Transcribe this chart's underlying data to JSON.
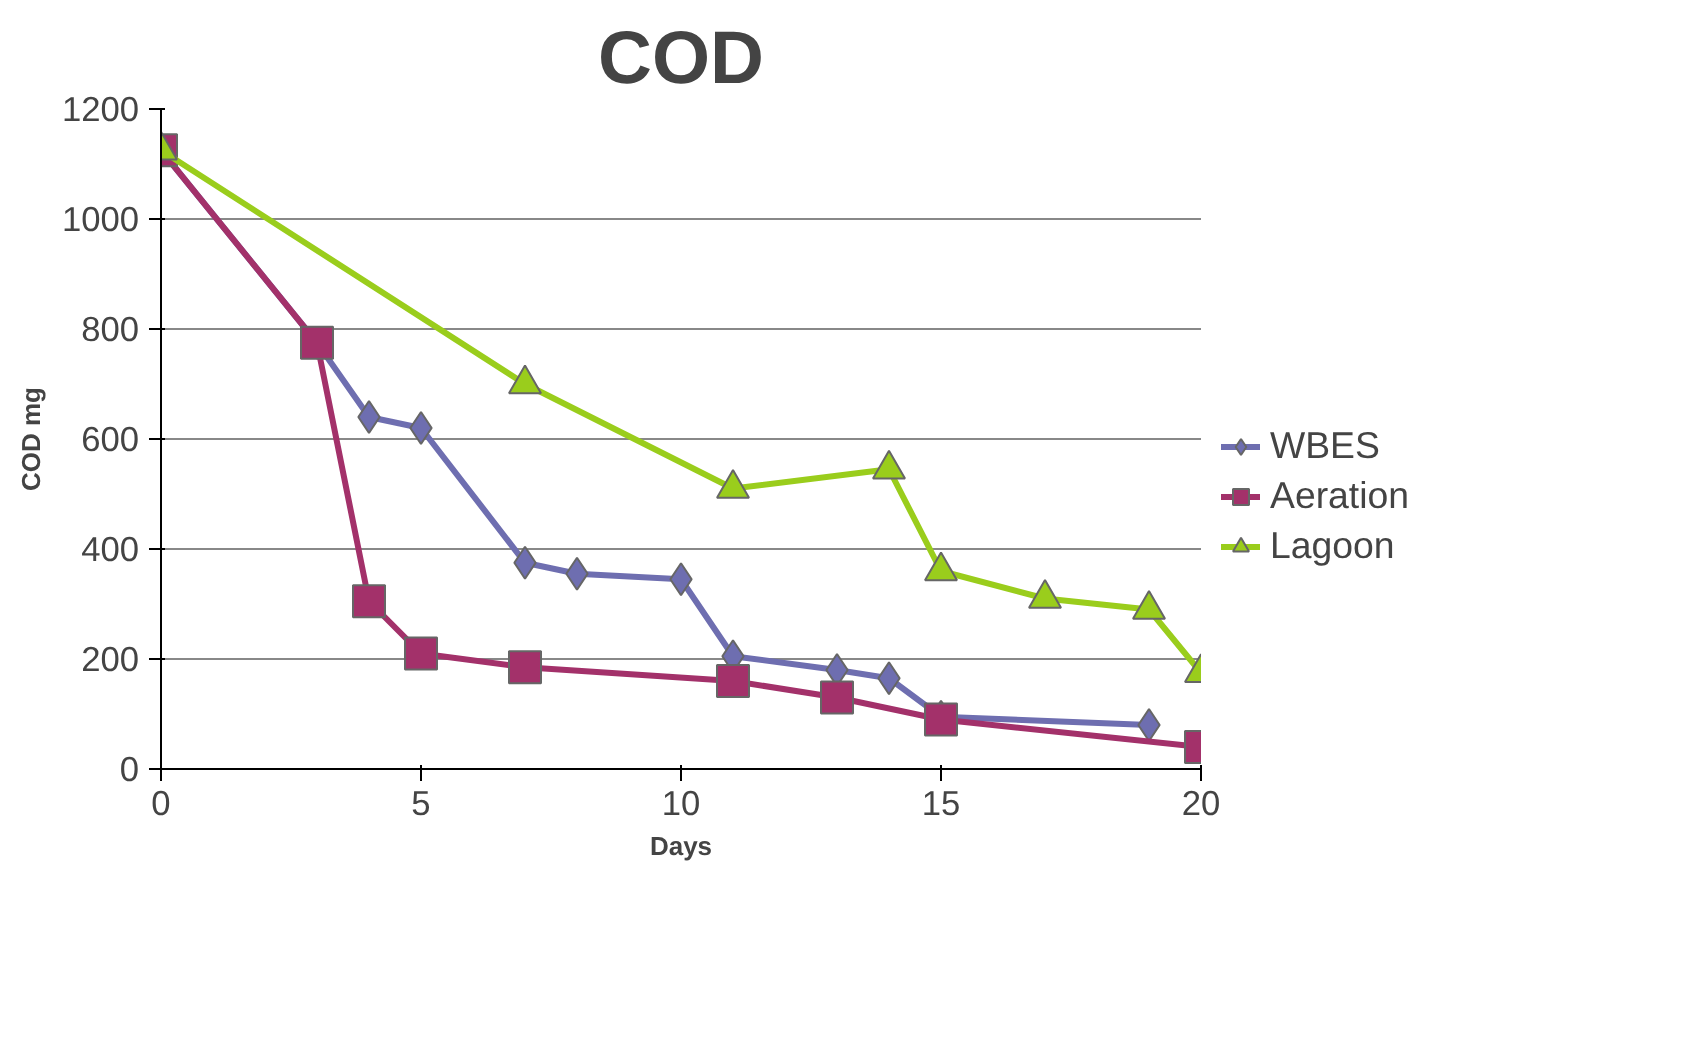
{
  "chart_data": {
    "type": "line",
    "title": "COD",
    "xlabel": "Days",
    "ylabel": "COD mg",
    "xlim": [
      0,
      20
    ],
    "xticks": [
      0,
      5,
      10,
      15,
      20
    ],
    "ylim": [
      0,
      1200
    ],
    "yticks": [
      0,
      200,
      400,
      600,
      800,
      1000,
      1200
    ],
    "grid": "y",
    "legend": "right",
    "series": [
      {
        "name": "WBES",
        "color": "#6e6eb0",
        "marker": "diamond",
        "x": [
          0,
          3,
          4,
          5,
          7,
          8,
          10,
          11,
          13,
          14,
          15,
          19
        ],
        "values": [
          1125,
          775,
          640,
          620,
          375,
          355,
          345,
          205,
          180,
          165,
          95,
          80
        ]
      },
      {
        "name": "Aeration",
        "color": "#a3316a",
        "marker": "square",
        "x": [
          0,
          3,
          4,
          5,
          7,
          11,
          13,
          15,
          20
        ],
        "values": [
          1125,
          775,
          305,
          210,
          185,
          160,
          130,
          90,
          40
        ]
      },
      {
        "name": "Lagoon",
        "color": "#9acd1c",
        "marker": "triangle",
        "x": [
          0,
          7,
          11,
          14,
          15,
          17,
          19,
          20
        ],
        "values": [
          1125,
          700,
          510,
          545,
          360,
          310,
          290,
          175
        ]
      }
    ]
  }
}
